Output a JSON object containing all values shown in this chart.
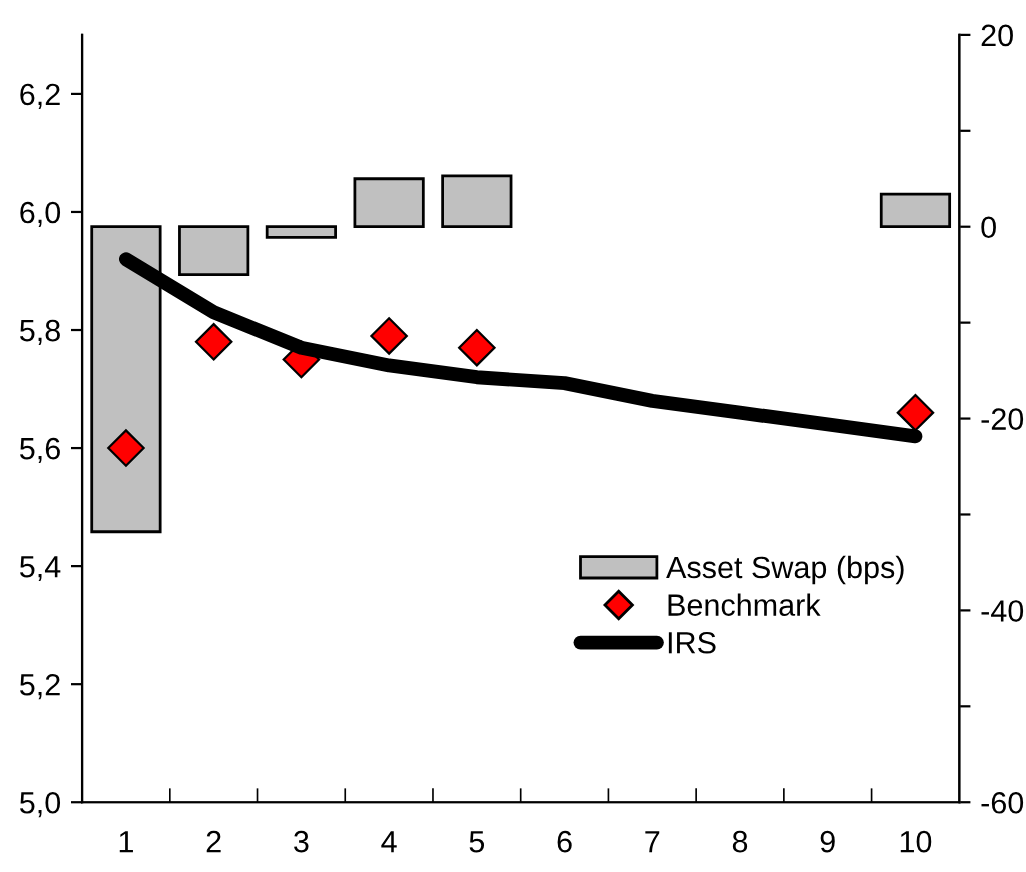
{
  "chart_data": {
    "type": "bar",
    "categories": [
      "1",
      "2",
      "3",
      "4",
      "5",
      "6",
      "7",
      "8",
      "9",
      "10"
    ],
    "series": [
      {
        "name": "Asset Swap (bps)",
        "axis": "y2",
        "color": "#c0c0c0",
        "values": [
          -31.8,
          -5.0,
          -1.1,
          5.0,
          5.3,
          null,
          null,
          null,
          null,
          3.4
        ]
      },
      {
        "name": "Benchmark",
        "type": "scatter",
        "marker": "diamond",
        "color": "#ff0000",
        "values": [
          5.6,
          5.78,
          5.75,
          5.79,
          5.77,
          null,
          null,
          null,
          null,
          5.66
        ]
      },
      {
        "name": "IRS",
        "type": "line",
        "color": "#000000",
        "values": [
          5.92,
          5.83,
          5.77,
          5.74,
          5.72,
          5.71,
          5.68,
          5.66,
          5.64,
          5.62
        ]
      }
    ],
    "ylim": [
      5.0,
      6.3
    ],
    "yticks": [
      {
        "value": 5.0,
        "label": "5,0"
      },
      {
        "value": 5.2,
        "label": "5,2"
      },
      {
        "value": 5.4,
        "label": "5,4"
      },
      {
        "value": 5.6,
        "label": "5,6"
      },
      {
        "value": 5.8,
        "label": "5,8"
      },
      {
        "value": 6.0,
        "label": "6,0"
      },
      {
        "value": 6.2,
        "label": "6,2"
      }
    ],
    "y2lim": [
      -60,
      20
    ],
    "y2ticks": [
      -60,
      {
        "value": -50,
        "label": null
      },
      -40,
      {
        "value": -30,
        "label": null
      },
      -20,
      {
        "value": -10,
        "label": null
      },
      0,
      {
        "value": 10,
        "label": null
      },
      20
    ],
    "grid": false,
    "legend": "lower right"
  }
}
